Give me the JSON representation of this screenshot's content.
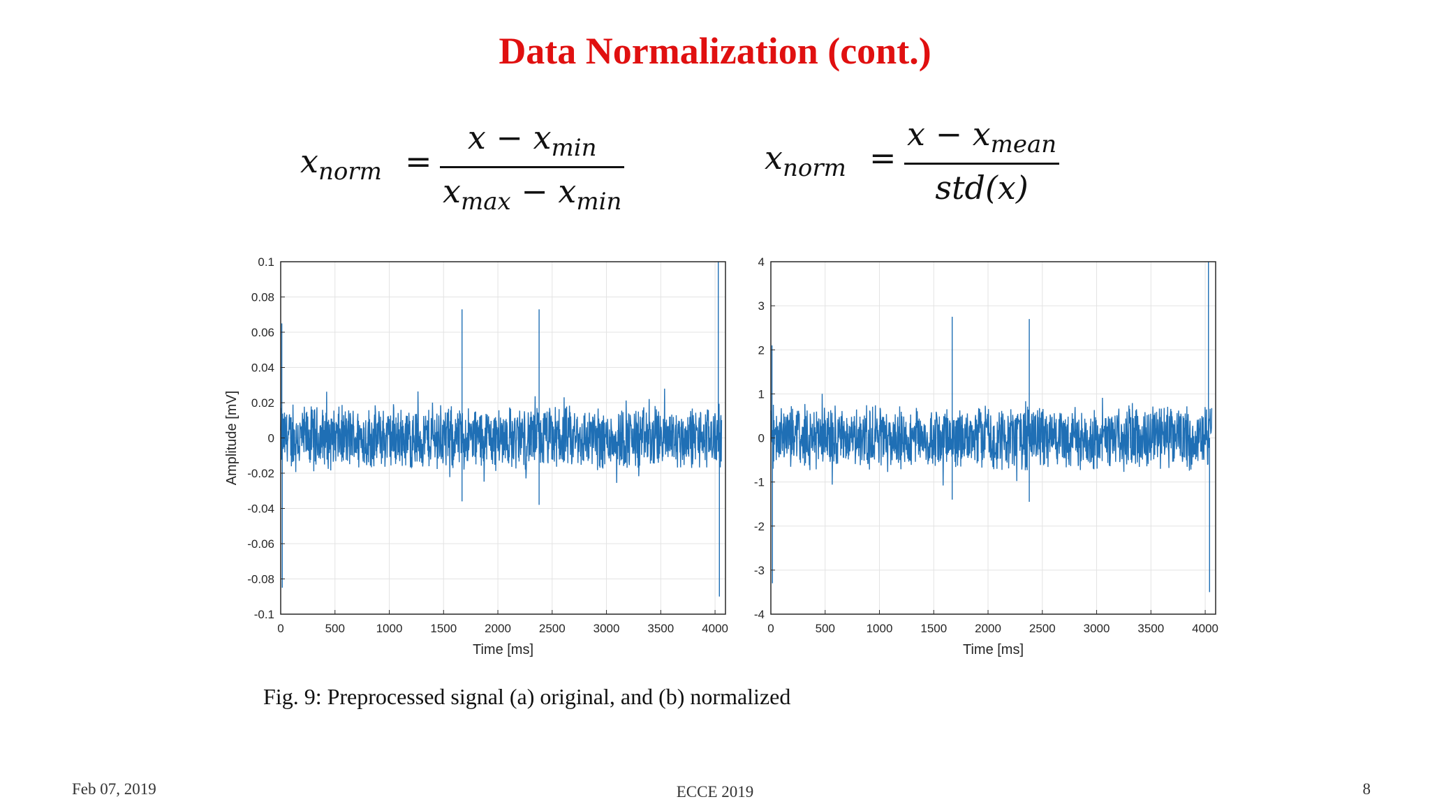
{
  "slide": {
    "title": "Data Normalization (cont.)",
    "caption": "Fig. 9: Preprocessed signal (a) original, and (b) normalized",
    "footer_left": "Feb 07, 2019",
    "footer_center": "ECCE 2019",
    "footer_right": "8"
  },
  "equations": {
    "minmax": {
      "lhs": "x",
      "lhs_sub": "norm",
      "eq": "=",
      "num": "x − x",
      "num_sub": "min",
      "den": "x",
      "den_sub": "max",
      "den_mid": " − x",
      "den_sub2": "min"
    },
    "zscore": {
      "lhs": "x",
      "lhs_sub": "norm",
      "eq": "=",
      "num": "x − x",
      "num_sub": "mean",
      "den": "std(x)"
    }
  },
  "chart_data": [
    {
      "type": "line",
      "title": "",
      "xlabel": "Time [ms]",
      "ylabel": "Amplitude [mV]",
      "xlim": [
        0,
        4096
      ],
      "ylim": [
        -0.1,
        0.1
      ],
      "xticks": [
        0,
        500,
        1000,
        1500,
        2000,
        2500,
        3000,
        3500,
        4000
      ],
      "yticks": [
        0.1,
        0.08,
        0.06,
        0.04,
        0.02,
        0,
        -0.02,
        -0.04,
        -0.06,
        -0.08,
        -0.1
      ],
      "ytick_labels": [
        "0.1",
        "0.08",
        "0.06",
        "0.04",
        "0.02",
        "0",
        "-0.02",
        "-0.04",
        "-0.06",
        "-0.08",
        "-0.1"
      ],
      "grid": true,
      "line_color": "#1f6fb5",
      "noise_band": 0.02,
      "spikes": [
        {
          "x": 1670,
          "y": 0.073
        },
        {
          "x": 2380,
          "y": 0.073
        },
        {
          "x": 1670,
          "y": -0.036
        },
        {
          "x": 2380,
          "y": -0.038
        },
        {
          "x": 4030,
          "y": 0.1
        },
        {
          "x": 4040,
          "y": -0.09
        },
        {
          "x": 10,
          "y": 0.065
        },
        {
          "x": 15,
          "y": -0.085
        }
      ]
    },
    {
      "type": "line",
      "title": "",
      "xlabel": "Time [ms]",
      "ylabel": "",
      "xlim": [
        0,
        4096
      ],
      "ylim": [
        -4,
        4
      ],
      "xticks": [
        0,
        500,
        1000,
        1500,
        2000,
        2500,
        3000,
        3500,
        4000
      ],
      "yticks": [
        4,
        3,
        2,
        1,
        0,
        -1,
        -2,
        -3,
        -4
      ],
      "ytick_labels": [
        "4",
        "3",
        "2",
        "1",
        "0",
        "-1",
        "-2",
        "-3",
        "-4"
      ],
      "grid": true,
      "line_color": "#1f6fb5",
      "noise_band": 0.8,
      "spikes": [
        {
          "x": 1670,
          "y": 2.75
        },
        {
          "x": 2380,
          "y": 2.7
        },
        {
          "x": 1670,
          "y": -1.4
        },
        {
          "x": 2380,
          "y": -1.45
        },
        {
          "x": 4030,
          "y": 4
        },
        {
          "x": 4040,
          "y": -3.5
        },
        {
          "x": 10,
          "y": 2.1
        },
        {
          "x": 15,
          "y": -3.3
        }
      ]
    }
  ]
}
